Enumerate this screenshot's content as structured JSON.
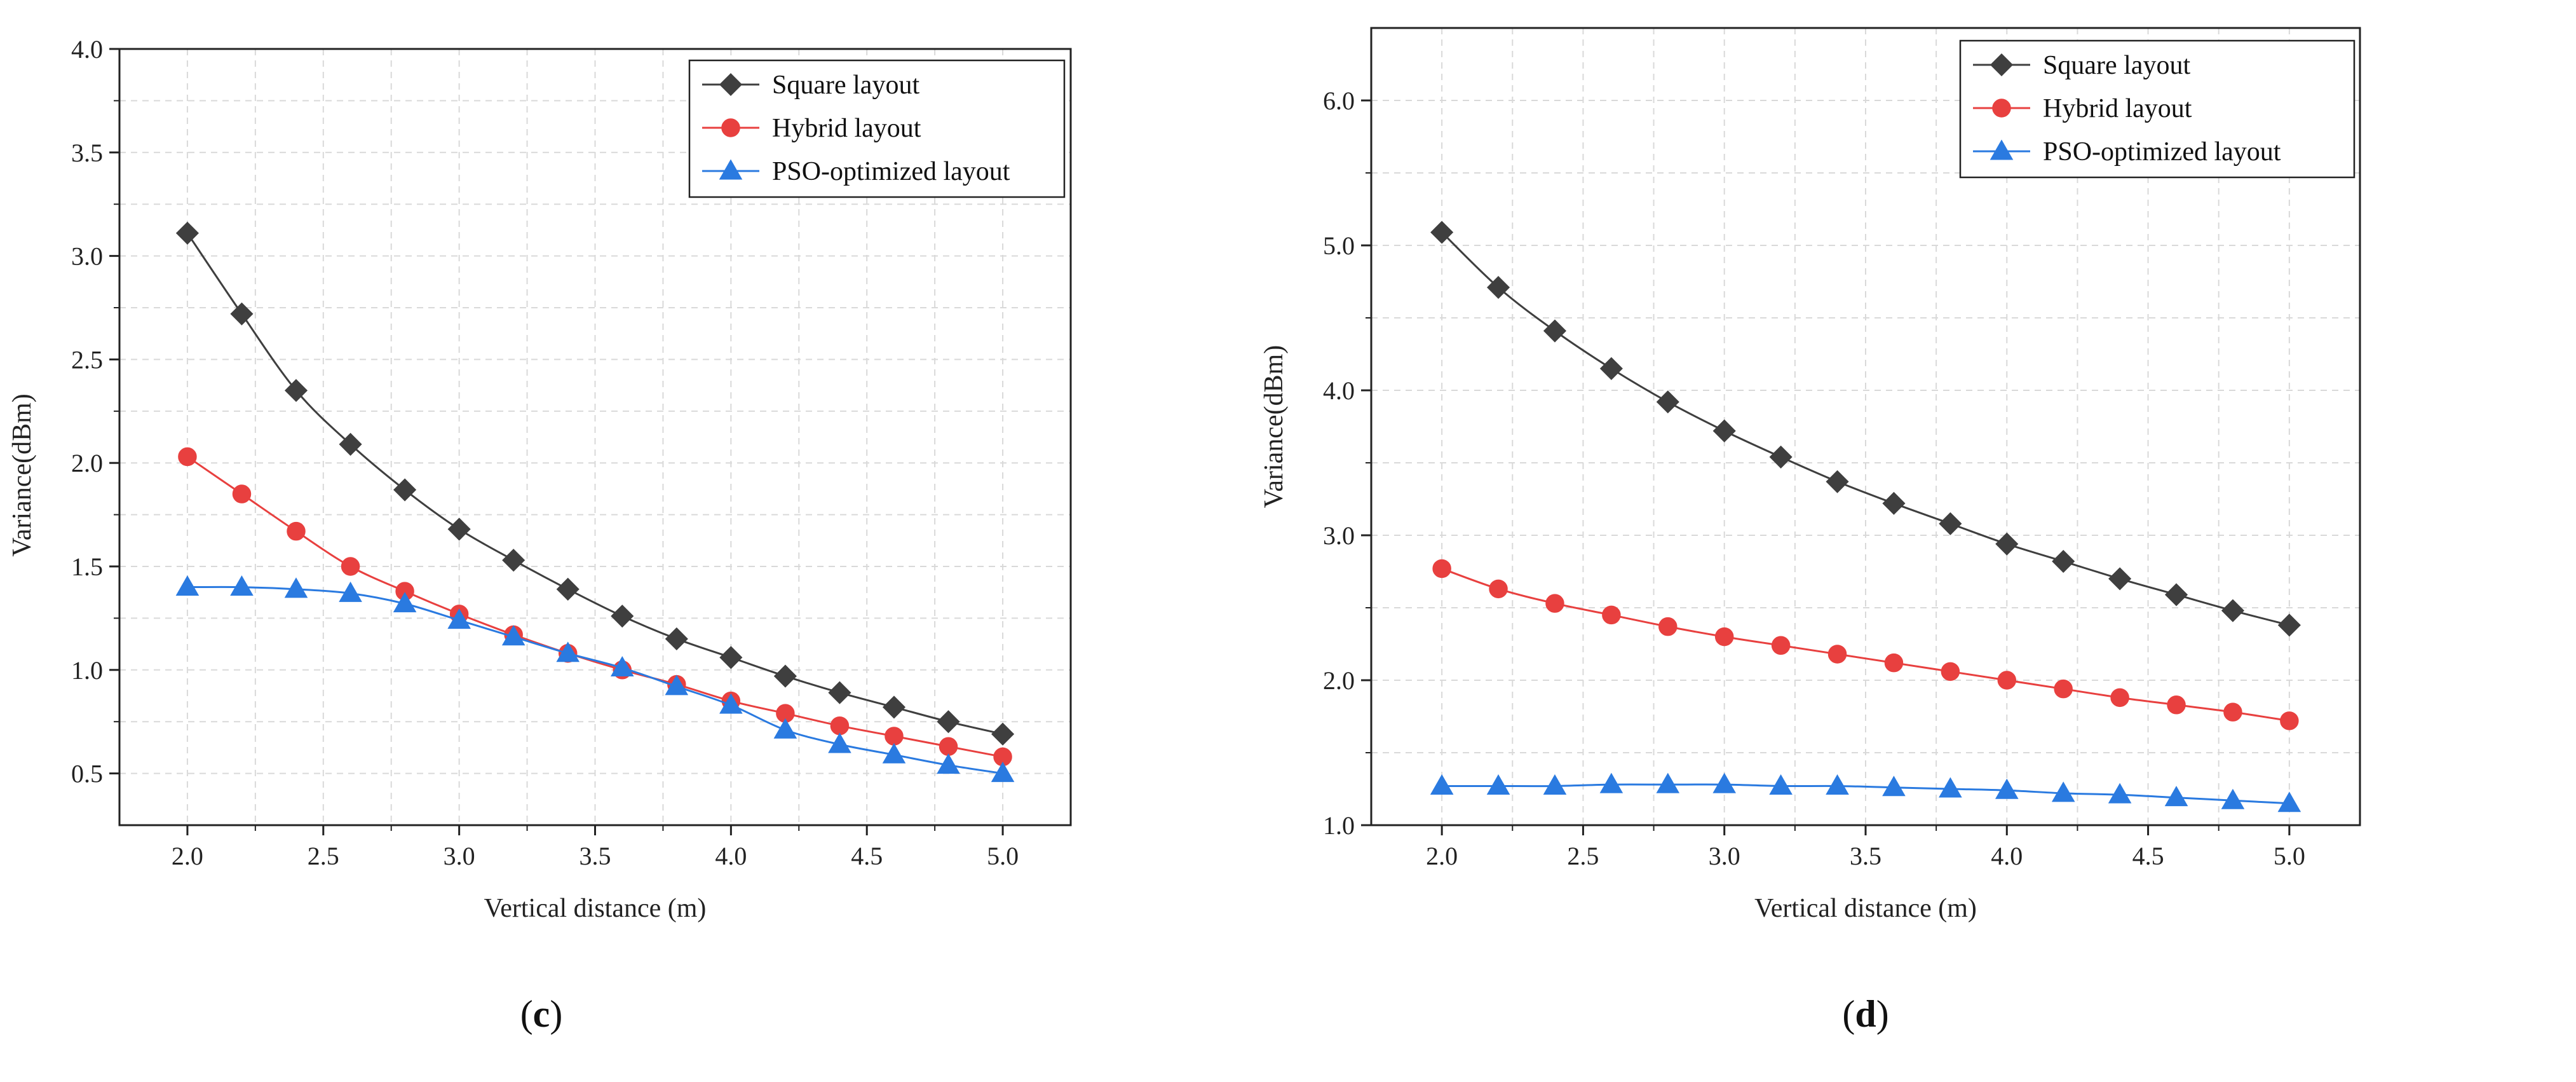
{
  "chart_data": [
    {
      "panel_id": "c",
      "caption": {
        "open": "(",
        "letter": "c",
        "close": ")"
      },
      "type": "line",
      "title": "",
      "xlabel": "Vertical distance (m)",
      "ylabel": "Variance(dBm)",
      "xlim": [
        1.75,
        5.25
      ],
      "ylim": [
        0.25,
        4.0
      ],
      "x_ticks": [
        2.0,
        2.5,
        3.0,
        3.5,
        4.0,
        4.5,
        5.0
      ],
      "x_tick_labels": [
        "2.0",
        "2.5",
        "3.0",
        "3.5",
        "4.0",
        "4.5",
        "5.0"
      ],
      "y_ticks": [
        0.5,
        1.0,
        1.5,
        2.0,
        2.5,
        3.0,
        3.5,
        4.0
      ],
      "y_tick_labels": [
        "0.5",
        "1.0",
        "1.5",
        "2.0",
        "2.5",
        "3.0",
        "3.5",
        "4.0"
      ],
      "grid": true,
      "legend_position": "top-right",
      "x": [
        2.0,
        2.2,
        2.4,
        2.6,
        2.8,
        3.0,
        3.2,
        3.4,
        3.6,
        3.8,
        4.0,
        4.2,
        4.4,
        4.6,
        4.8,
        5.0
      ],
      "series": [
        {
          "name": "Square layout",
          "color": "#3f3f3f",
          "marker": "diamond",
          "values": [
            3.11,
            2.72,
            2.35,
            2.09,
            1.87,
            1.68,
            1.53,
            1.39,
            1.26,
            1.15,
            1.06,
            0.97,
            0.89,
            0.82,
            0.75,
            0.69
          ]
        },
        {
          "name": "Hybrid layout",
          "color": "#e8403f",
          "marker": "circle",
          "values": [
            2.03,
            1.85,
            1.67,
            1.5,
            1.38,
            1.27,
            1.17,
            1.08,
            1.0,
            0.93,
            0.85,
            0.79,
            0.73,
            0.68,
            0.63,
            0.58
          ]
        },
        {
          "name": "PSO-optimized layout",
          "color": "#2a7ae0",
          "marker": "triangle",
          "values": [
            1.4,
            1.4,
            1.39,
            1.37,
            1.32,
            1.24,
            1.16,
            1.08,
            1.01,
            0.92,
            0.83,
            0.71,
            0.64,
            0.59,
            0.54,
            0.5
          ]
        }
      ]
    },
    {
      "panel_id": "d",
      "caption": {
        "open": "(",
        "letter": "d",
        "close": ")"
      },
      "type": "line",
      "title": "",
      "xlabel": "Vertical distance (m)",
      "ylabel": "Variance(dBm)",
      "xlim": [
        1.75,
        5.25
      ],
      "ylim": [
        1.0,
        6.5
      ],
      "x_ticks": [
        2.0,
        2.5,
        3.0,
        3.5,
        4.0,
        4.5,
        5.0
      ],
      "x_tick_labels": [
        "2.0",
        "2.5",
        "3.0",
        "3.5",
        "4.0",
        "4.5",
        "5.0"
      ],
      "y_ticks": [
        1.0,
        2.0,
        3.0,
        4.0,
        5.0,
        6.0
      ],
      "y_tick_labels": [
        "1.0",
        "2.0",
        "3.0",
        "4.0",
        "5.0",
        "6.0"
      ],
      "grid": true,
      "legend_position": "top-right",
      "x": [
        2.0,
        2.2,
        2.4,
        2.6,
        2.8,
        3.0,
        3.2,
        3.4,
        3.6,
        3.8,
        4.0,
        4.2,
        4.4,
        4.6,
        4.8,
        5.0
      ],
      "series": [
        {
          "name": "Square layout",
          "color": "#3f3f3f",
          "marker": "diamond",
          "values": [
            5.09,
            4.71,
            4.41,
            4.15,
            3.92,
            3.72,
            3.54,
            3.37,
            3.22,
            3.08,
            2.94,
            2.82,
            2.7,
            2.59,
            2.48,
            2.38
          ]
        },
        {
          "name": "Hybrid layout",
          "color": "#e8403f",
          "marker": "circle",
          "values": [
            2.77,
            2.63,
            2.53,
            2.45,
            2.37,
            2.3,
            2.24,
            2.18,
            2.12,
            2.06,
            2.0,
            1.94,
            1.88,
            1.83,
            1.78,
            1.72
          ]
        },
        {
          "name": "PSO-optimized layout",
          "color": "#2a7ae0",
          "marker": "triangle",
          "values": [
            1.27,
            1.27,
            1.27,
            1.28,
            1.28,
            1.28,
            1.27,
            1.27,
            1.26,
            1.25,
            1.24,
            1.22,
            1.21,
            1.19,
            1.17,
            1.15
          ]
        }
      ]
    }
  ]
}
